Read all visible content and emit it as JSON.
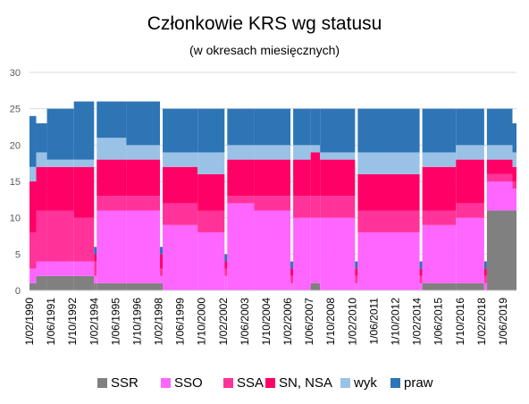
{
  "chart_data": {
    "type": "area",
    "title": "Członkowie KRS wg statusu",
    "subtitle": "(w okresach miesięcznych)",
    "xlabel": "",
    "ylabel": "",
    "ylim": [
      0,
      30
    ],
    "yticks": [
      0,
      5,
      10,
      15,
      20,
      25,
      30
    ],
    "grid": true,
    "legend": "bottom",
    "x_tick_labels": [
      "1/02/1990",
      "1/06/1991",
      "1/10/1992",
      "1/02/1994",
      "1/06/1995",
      "1/10/1996",
      "1/02/1998",
      "1/06/1999",
      "1/10/2000",
      "1/02/2002",
      "1/06/2003",
      "1/10/2004",
      "1/02/2006",
      "1/06/2007",
      "1/10/2008",
      "1/02/2010",
      "1/06/2011",
      "1/10/2012",
      "1/02/2014",
      "1/06/2015",
      "1/10/2016",
      "1/02/2018",
      "1/06/2019"
    ],
    "x_range": [
      "1/02/1990",
      "1/03/2020"
    ],
    "stack_order": [
      "SSR",
      "SSO",
      "SSA",
      "SN, NSA",
      "wyk",
      "praw"
    ],
    "periods": [
      {
        "from": "1990-02",
        "to": "1990-06",
        "SSR": 1,
        "SSO": 2,
        "SSA": 5,
        "SN, NSA": 7,
        "wyk": 2,
        "praw": 7
      },
      {
        "from": "1990-07",
        "to": "1991-02",
        "SSR": 2,
        "SSO": 2,
        "SSA": 7,
        "SN, NSA": 6,
        "wyk": 2,
        "praw": 4
      },
      {
        "from": "1991-03",
        "to": "1992-10",
        "SSR": 2,
        "SSO": 2,
        "SSA": 7,
        "SN, NSA": 6,
        "wyk": 1,
        "praw": 7
      },
      {
        "from": "1992-11",
        "to": "1994-01",
        "SSR": 2,
        "SSO": 2,
        "SSA": 6,
        "SN, NSA": 7,
        "wyk": 1,
        "praw": 8
      },
      {
        "from": "1994-02",
        "to": "1994-03",
        "SSR": 1,
        "SSO": 1,
        "SSA": 2,
        "SN, NSA": 1,
        "wyk": 0,
        "praw": 1
      },
      {
        "from": "1994-04",
        "to": "1996-01",
        "SSR": 1,
        "SSO": 10,
        "SSA": 2,
        "SN, NSA": 5,
        "wyk": 3,
        "praw": 5
      },
      {
        "from": "1996-02",
        "to": "1998-02",
        "SSR": 1,
        "SSO": 10,
        "SSA": 2,
        "SN, NSA": 5,
        "wyk": 2,
        "praw": 6
      },
      {
        "from": "1998-03",
        "to": "1998-04",
        "SSR": 1,
        "SSO": 1,
        "SSA": 1,
        "SN, NSA": 2,
        "wyk": 0,
        "praw": 1
      },
      {
        "from": "1998-05",
        "to": "2000-06",
        "SSR": 0,
        "SSO": 9,
        "SSA": 3,
        "SN, NSA": 5,
        "wyk": 2,
        "praw": 6
      },
      {
        "from": "2000-07",
        "to": "2002-02",
        "SSR": 0,
        "SSO": 8,
        "SSA": 3,
        "SN, NSA": 5,
        "wyk": 3,
        "praw": 6
      },
      {
        "from": "2002-03",
        "to": "2002-04",
        "SSR": 0,
        "SSO": 2,
        "SSA": 1,
        "SN, NSA": 1,
        "wyk": 0,
        "praw": 1
      },
      {
        "from": "2002-05",
        "to": "2003-12",
        "SSR": 0,
        "SSO": 12,
        "SSA": 1,
        "SN, NSA": 5,
        "wyk": 2,
        "praw": 5
      },
      {
        "from": "2004-01",
        "to": "2006-03",
        "SSR": 0,
        "SSO": 11,
        "SSA": 2,
        "SN, NSA": 5,
        "wyk": 2,
        "praw": 5
      },
      {
        "from": "2006-04",
        "to": "2006-05",
        "SSR": 0,
        "SSO": 1,
        "SSA": 1,
        "SN, NSA": 1,
        "wyk": 0,
        "praw": 1
      },
      {
        "from": "2006-06",
        "to": "2007-06",
        "SSR": 0,
        "SSO": 10,
        "SSA": 3,
        "SN, NSA": 5,
        "wyk": 2,
        "praw": 5
      },
      {
        "from": "2007-07",
        "to": "2008-01",
        "SSR": 1,
        "SSO": 9,
        "SSA": 3,
        "SN, NSA": 6,
        "wyk": 1,
        "praw": 5
      },
      {
        "from": "2008-02",
        "to": "2010-03",
        "SSR": 0,
        "SSO": 10,
        "SSA": 3,
        "SN, NSA": 5,
        "wyk": 1,
        "praw": 6
      },
      {
        "from": "2010-04",
        "to": "2010-05",
        "SSR": 0,
        "SSO": 1,
        "SSA": 1,
        "SN, NSA": 1,
        "wyk": 0,
        "praw": 1
      },
      {
        "from": "2010-06",
        "to": "2014-03",
        "SSR": 0,
        "SSO": 8,
        "SSA": 3,
        "SN, NSA": 5,
        "wyk": 3,
        "praw": 6
      },
      {
        "from": "2014-04",
        "to": "2014-05",
        "SSR": 0,
        "SSO": 1,
        "SSA": 1,
        "SN, NSA": 1,
        "wyk": 0,
        "praw": 1
      },
      {
        "from": "2014-06",
        "to": "2016-06",
        "SSR": 1,
        "SSO": 8,
        "SSA": 2,
        "SN, NSA": 6,
        "wyk": 2,
        "praw": 6
      },
      {
        "from": "2016-07",
        "to": "2018-03",
        "SSR": 1,
        "SSO": 9,
        "SSA": 2,
        "SN, NSA": 6,
        "wyk": 2,
        "praw": 5
      },
      {
        "from": "2018-04",
        "to": "2018-05",
        "SSR": 0,
        "SSO": 1,
        "SSA": 1,
        "SN, NSA": 1,
        "wyk": 0,
        "praw": 1
      },
      {
        "from": "2018-06",
        "to": "2019-12",
        "SSR": 11,
        "SSO": 4,
        "SSA": 1,
        "SN, NSA": 2,
        "wyk": 2,
        "praw": 5
      },
      {
        "from": "2020-01",
        "to": "2020-03",
        "SSR": 11,
        "SSO": 3,
        "SSA": 1,
        "SN, NSA": 2,
        "wyk": 2,
        "praw": 4
      }
    ],
    "series": [
      {
        "name": "SSR",
        "color": "#808080"
      },
      {
        "name": "SSO",
        "color": "#ff66ff"
      },
      {
        "name": "SSA",
        "color": "#ff3399"
      },
      {
        "name": "SN, NSA",
        "color": "#ff0066"
      },
      {
        "name": "wyk",
        "color": "#99c2e6"
      },
      {
        "name": "praw",
        "color": "#2e75b6"
      }
    ]
  }
}
